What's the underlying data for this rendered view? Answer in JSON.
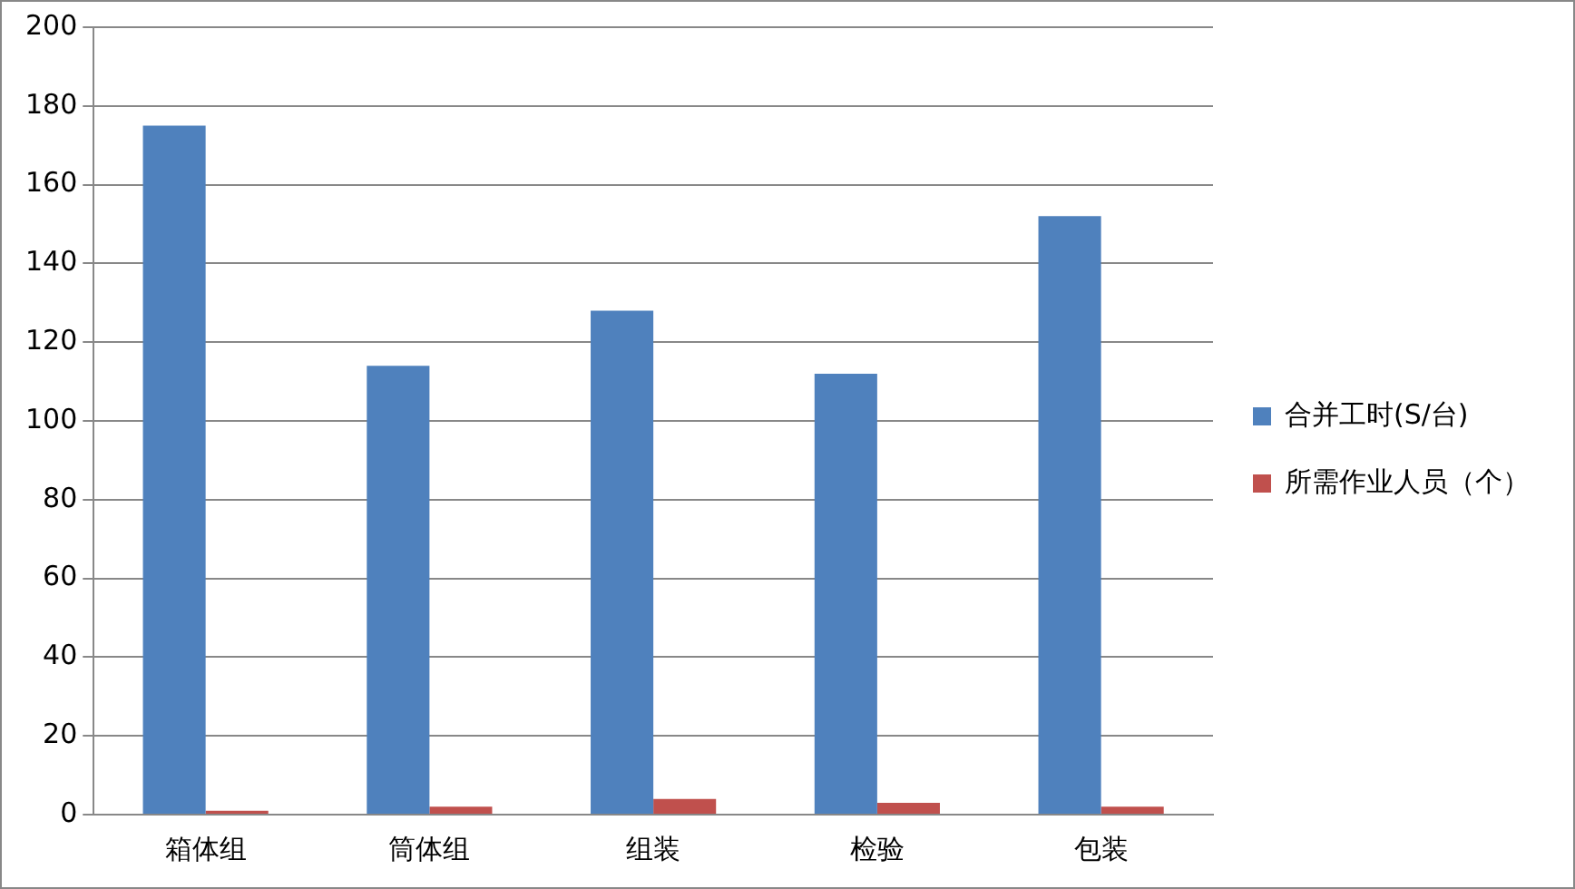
{
  "chart_data": {
    "type": "bar",
    "categories": [
      "箱体组",
      "筒体组",
      "组装",
      "检验",
      "包装"
    ],
    "series": [
      {
        "name": "合并工时(S/台)",
        "color": "#4f81bd",
        "values": [
          175,
          114,
          128,
          112,
          152
        ]
      },
      {
        "name": "所需作业人员（个）",
        "color": "#c0504d",
        "values": [
          1,
          2,
          4,
          3,
          2
        ]
      }
    ],
    "ylim": [
      0,
      200
    ],
    "yticks": [
      0,
      20,
      40,
      60,
      80,
      100,
      120,
      140,
      160,
      180,
      200
    ],
    "grid": "y",
    "legend": "right"
  }
}
